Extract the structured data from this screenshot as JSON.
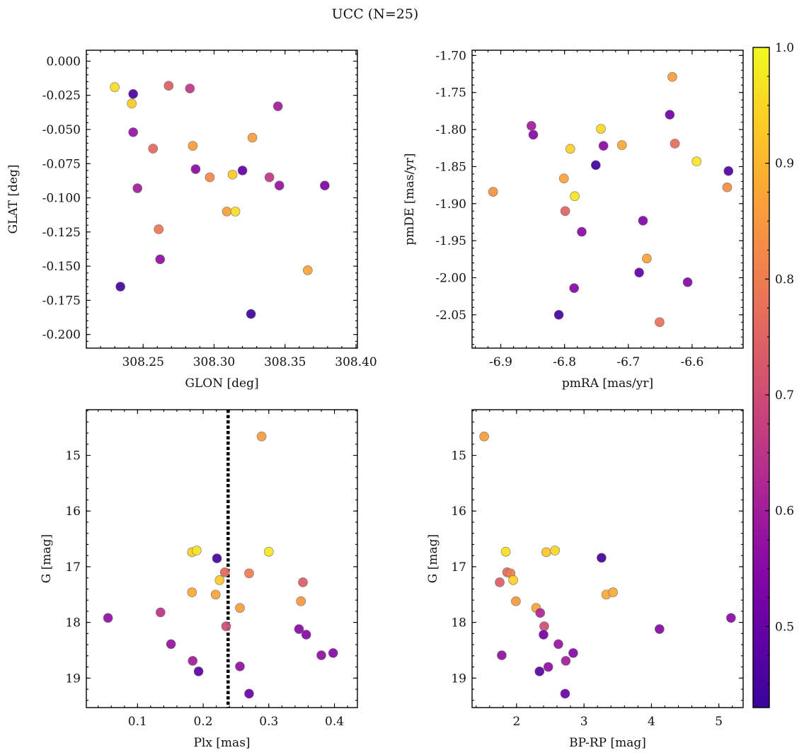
{
  "figure_title": "UCC (N=25)",
  "colorbar": {
    "min": 0.43,
    "max": 1.0,
    "ticks": [
      0.5,
      0.6,
      0.7,
      0.8,
      0.9,
      1.0
    ],
    "tick_labels": [
      "0.5",
      "0.6",
      "0.7",
      "0.8",
      "0.9",
      "1.0"
    ],
    "colormap": "plasma"
  },
  "chart_data": [
    {
      "type": "scatter",
      "xlabel": "GLON [deg]",
      "ylabel": "GLAT [deg]",
      "xlim": [
        308.21,
        308.401
      ],
      "ylim": [
        -0.21,
        0.008
      ],
      "x_ticks": [
        308.25,
        308.3,
        308.35,
        308.4
      ],
      "x_tick_labels": [
        "308.25",
        "308.30",
        "308.35",
        "308.40"
      ],
      "y_ticks": [
        0.0,
        -0.025,
        -0.05,
        -0.075,
        -0.1,
        -0.125,
        -0.15,
        -0.175,
        -0.2
      ],
      "y_tick_labels": [
        "0.000",
        "-0.025",
        "-0.050",
        "-0.075",
        "-0.100",
        "-0.125",
        "-0.150",
        "-0.175",
        "-0.200"
      ],
      "points": [
        {
          "x": 308.23,
          "y": -0.019,
          "c": 0.96
        },
        {
          "x": 308.243,
          "y": -0.024,
          "c": 0.46
        },
        {
          "x": 308.242,
          "y": -0.031,
          "c": 0.93
        },
        {
          "x": 308.268,
          "y": -0.018,
          "c": 0.74
        },
        {
          "x": 308.283,
          "y": -0.02,
          "c": 0.66
        },
        {
          "x": 308.345,
          "y": -0.033,
          "c": 0.6
        },
        {
          "x": 308.243,
          "y": -0.052,
          "c": 0.58
        },
        {
          "x": 308.327,
          "y": -0.056,
          "c": 0.86
        },
        {
          "x": 308.257,
          "y": -0.064,
          "c": 0.76
        },
        {
          "x": 308.285,
          "y": -0.062,
          "c": 0.86
        },
        {
          "x": 308.287,
          "y": -0.079,
          "c": 0.56
        },
        {
          "x": 308.297,
          "y": -0.085,
          "c": 0.82
        },
        {
          "x": 308.313,
          "y": -0.083,
          "c": 0.93
        },
        {
          "x": 308.32,
          "y": -0.08,
          "c": 0.5
        },
        {
          "x": 308.339,
          "y": -0.085,
          "c": 0.66
        },
        {
          "x": 308.346,
          "y": -0.091,
          "c": 0.58
        },
        {
          "x": 308.378,
          "y": -0.091,
          "c": 0.54
        },
        {
          "x": 308.246,
          "y": -0.093,
          "c": 0.6
        },
        {
          "x": 308.309,
          "y": -0.11,
          "c": 0.86
        },
        {
          "x": 308.315,
          "y": -0.11,
          "c": 0.96
        },
        {
          "x": 308.261,
          "y": -0.123,
          "c": 0.79
        },
        {
          "x": 308.262,
          "y": -0.145,
          "c": 0.57
        },
        {
          "x": 308.366,
          "y": -0.153,
          "c": 0.87
        },
        {
          "x": 308.234,
          "y": -0.165,
          "c": 0.45
        },
        {
          "x": 308.326,
          "y": -0.185,
          "c": 0.44
        }
      ]
    },
    {
      "type": "scatter",
      "xlabel": "pmRA [mas/yr]",
      "ylabel": "pmDE [mas/yr]",
      "xlim": [
        -6.945,
        -6.52
      ],
      "ylim": [
        -2.095,
        -1.693
      ],
      "x_ticks": [
        -6.9,
        -6.8,
        -6.7,
        -6.6
      ],
      "x_tick_labels": [
        "-6.9",
        "-6.8",
        "-6.7",
        "-6.6"
      ],
      "y_ticks": [
        -1.7,
        -1.75,
        -1.8,
        -1.85,
        -1.9,
        -1.95,
        -2.0,
        -2.05
      ],
      "y_tick_labels": [
        "-1.70",
        "-1.75",
        "-1.80",
        "-1.85",
        "-1.90",
        "-1.95",
        "-2.00",
        "-2.05"
      ],
      "points": [
        {
          "x": -6.631,
          "y": -1.729,
          "c": 0.86
        },
        {
          "x": -6.852,
          "y": -1.795,
          "c": 0.6
        },
        {
          "x": -6.849,
          "y": -1.807,
          "c": 0.55
        },
        {
          "x": -6.635,
          "y": -1.78,
          "c": 0.52
        },
        {
          "x": -6.743,
          "y": -1.799,
          "c": 0.95
        },
        {
          "x": -6.71,
          "y": -1.821,
          "c": 0.88
        },
        {
          "x": -6.627,
          "y": -1.819,
          "c": 0.77
        },
        {
          "x": -6.739,
          "y": -1.822,
          "c": 0.56
        },
        {
          "x": -6.791,
          "y": -1.826,
          "c": 0.94
        },
        {
          "x": -6.593,
          "y": -1.843,
          "c": 0.97
        },
        {
          "x": -6.751,
          "y": -1.848,
          "c": 0.44
        },
        {
          "x": -6.543,
          "y": -1.856,
          "c": 0.47
        },
        {
          "x": -6.801,
          "y": -1.866,
          "c": 0.87
        },
        {
          "x": -6.545,
          "y": -1.878,
          "c": 0.83
        },
        {
          "x": -6.912,
          "y": -1.884,
          "c": 0.84
        },
        {
          "x": -6.784,
          "y": -1.89,
          "c": 0.97
        },
        {
          "x": -6.799,
          "y": -1.91,
          "c": 0.75
        },
        {
          "x": -6.677,
          "y": -1.923,
          "c": 0.54
        },
        {
          "x": -6.773,
          "y": -1.938,
          "c": 0.56
        },
        {
          "x": -6.671,
          "y": -1.974,
          "c": 0.87
        },
        {
          "x": -6.683,
          "y": -1.993,
          "c": 0.5
        },
        {
          "x": -6.607,
          "y": -2.006,
          "c": 0.55
        },
        {
          "x": -6.785,
          "y": -2.014,
          "c": 0.55
        },
        {
          "x": -6.809,
          "y": -2.05,
          "c": 0.45
        },
        {
          "x": -6.651,
          "y": -2.06,
          "c": 0.78
        }
      ]
    },
    {
      "type": "scatter",
      "xlabel": "Plx [mas]",
      "ylabel": "G [mag]",
      "xlim": [
        0.022,
        0.435
      ],
      "ylim": [
        19.53,
        14.18
      ],
      "x_ticks": [
        0.1,
        0.2,
        0.3,
        0.4
      ],
      "x_tick_labels": [
        "0.1",
        "0.2",
        "0.3",
        "0.4"
      ],
      "y_ticks": [
        15,
        16,
        17,
        18,
        19
      ],
      "y_tick_labels": [
        "15",
        "16",
        "17",
        "18",
        "19"
      ],
      "vertical_line": {
        "x": 0.238,
        "style": "dotted",
        "color": "#000000"
      },
      "points": [
        {
          "x": 0.289,
          "y": 14.66,
          "c": 0.86
        },
        {
          "x": 0.183,
          "y": 16.74,
          "c": 0.94
        },
        {
          "x": 0.19,
          "y": 16.71,
          "c": 0.97
        },
        {
          "x": 0.3,
          "y": 16.73,
          "c": 0.97
        },
        {
          "x": 0.221,
          "y": 16.85,
          "c": 0.45
        },
        {
          "x": 0.233,
          "y": 17.1,
          "c": 0.76
        },
        {
          "x": 0.27,
          "y": 17.12,
          "c": 0.8
        },
        {
          "x": 0.225,
          "y": 17.24,
          "c": 0.93
        },
        {
          "x": 0.352,
          "y": 17.28,
          "c": 0.74
        },
        {
          "x": 0.183,
          "y": 17.46,
          "c": 0.88
        },
        {
          "x": 0.219,
          "y": 17.5,
          "c": 0.87
        },
        {
          "x": 0.349,
          "y": 17.62,
          "c": 0.85
        },
        {
          "x": 0.256,
          "y": 17.74,
          "c": 0.86
        },
        {
          "x": 0.135,
          "y": 17.82,
          "c": 0.65
        },
        {
          "x": 0.055,
          "y": 17.92,
          "c": 0.57
        },
        {
          "x": 0.235,
          "y": 18.07,
          "c": 0.7
        },
        {
          "x": 0.346,
          "y": 18.12,
          "c": 0.55
        },
        {
          "x": 0.357,
          "y": 18.22,
          "c": 0.55
        },
        {
          "x": 0.151,
          "y": 18.39,
          "c": 0.58
        },
        {
          "x": 0.38,
          "y": 18.59,
          "c": 0.57
        },
        {
          "x": 0.398,
          "y": 18.55,
          "c": 0.55
        },
        {
          "x": 0.184,
          "y": 18.69,
          "c": 0.6
        },
        {
          "x": 0.256,
          "y": 18.79,
          "c": 0.57
        },
        {
          "x": 0.193,
          "y": 18.88,
          "c": 0.48
        },
        {
          "x": 0.27,
          "y": 19.28,
          "c": 0.51
        }
      ]
    },
    {
      "type": "scatter",
      "xlabel": "BP-RP [mag]",
      "ylabel": "G [mag]",
      "xlim": [
        1.34,
        5.36
      ],
      "ylim": [
        19.53,
        14.18
      ],
      "x_ticks": [
        2,
        3,
        4,
        5
      ],
      "x_tick_labels": [
        "2",
        "3",
        "4",
        "5"
      ],
      "y_ticks": [
        15,
        16,
        17,
        18,
        19
      ],
      "y_tick_labels": [
        "15",
        "16",
        "17",
        "18",
        "19"
      ],
      "points": [
        {
          "x": 1.52,
          "y": 14.66,
          "c": 0.86
        },
        {
          "x": 1.84,
          "y": 16.73,
          "c": 0.96
        },
        {
          "x": 2.44,
          "y": 16.74,
          "c": 0.92
        },
        {
          "x": 2.57,
          "y": 16.71,
          "c": 0.95
        },
        {
          "x": 3.26,
          "y": 16.84,
          "c": 0.45
        },
        {
          "x": 1.86,
          "y": 17.1,
          "c": 0.76
        },
        {
          "x": 1.91,
          "y": 17.12,
          "c": 0.8
        },
        {
          "x": 1.75,
          "y": 17.28,
          "c": 0.74
        },
        {
          "x": 1.95,
          "y": 17.24,
          "c": 0.94
        },
        {
          "x": 3.33,
          "y": 17.5,
          "c": 0.88
        },
        {
          "x": 3.43,
          "y": 17.46,
          "c": 0.88
        },
        {
          "x": 1.99,
          "y": 17.62,
          "c": 0.85
        },
        {
          "x": 2.29,
          "y": 17.74,
          "c": 0.87
        },
        {
          "x": 2.35,
          "y": 17.83,
          "c": 0.62
        },
        {
          "x": 5.18,
          "y": 17.92,
          "c": 0.56
        },
        {
          "x": 2.41,
          "y": 18.07,
          "c": 0.7
        },
        {
          "x": 4.12,
          "y": 18.12,
          "c": 0.55
        },
        {
          "x": 2.4,
          "y": 18.22,
          "c": 0.52
        },
        {
          "x": 2.62,
          "y": 18.39,
          "c": 0.58
        },
        {
          "x": 1.78,
          "y": 18.59,
          "c": 0.57
        },
        {
          "x": 2.84,
          "y": 18.55,
          "c": 0.55
        },
        {
          "x": 2.73,
          "y": 18.69,
          "c": 0.6
        },
        {
          "x": 2.47,
          "y": 18.8,
          "c": 0.57
        },
        {
          "x": 2.34,
          "y": 18.88,
          "c": 0.48
        },
        {
          "x": 2.72,
          "y": 19.28,
          "c": 0.51
        }
      ]
    }
  ]
}
